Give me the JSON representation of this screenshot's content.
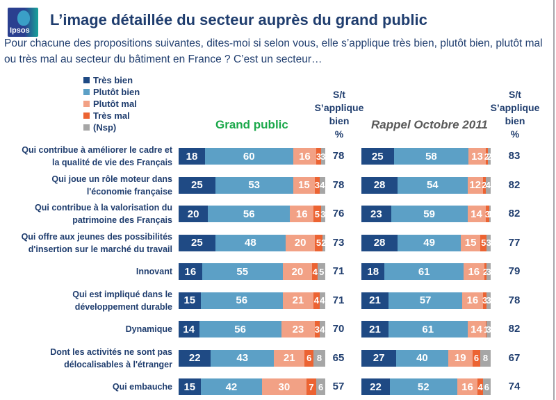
{
  "header": {
    "logo_text": "Ipsos",
    "title": "L’image détaillée du secteur auprès du grand public",
    "subtitle": "Pour chacune des propositions suivantes, dites-moi si selon vous, elle s’applique très bien, plutôt bien, plutôt mal ou très mal au secteur du bâtiment en France ? C’est un secteur…"
  },
  "colors": {
    "tres_bien": "#1f4a84",
    "plutot_bien": "#5ca0c6",
    "plutot_mal": "#f2a185",
    "tres_mal": "#ec6332",
    "nsp": "#a6a6a6"
  },
  "chart_data": {
    "type": "bar",
    "orientation": "horizontal",
    "stacked": true,
    "title": "L’image détaillée du secteur auprès du grand public",
    "legend": [
      "Très bien",
      "Plutôt bien",
      "Plutôt mal",
      "Très mal",
      "(Nsp)"
    ],
    "legend_position": "top-left",
    "categories": [
      "Qui contribue à améliorer le cadre et la qualité de vie des Français",
      "Qui joue un rôle moteur dans l'économie française",
      "Qui contribue à la valorisation du patrimoine des Français",
      "Qui offre aux jeunes des possibilités d'insertion sur le marché du travail",
      "Innovant",
      "Qui est impliqué dans le développement durable",
      "Dynamique",
      "Dont les activités ne sont pas délocalisables à l'étranger",
      "Qui embauche"
    ],
    "category_lines": [
      [
        "Qui contribue à améliorer le cadre et",
        "la qualité de vie des Français"
      ],
      [
        "Qui joue un rôle moteur dans",
        "l'économie française"
      ],
      [
        "Qui contribue à la valorisation du",
        "patrimoine des Français"
      ],
      [
        "Qui offre aux jeunes des possibilités",
        "d'insertion sur le marché du travail"
      ],
      [
        "Innovant"
      ],
      [
        "Qui est impliqué dans le",
        "développement durable"
      ],
      [
        "Dynamique"
      ],
      [
        "Dont les activités ne sont pas",
        "délocalisables à l'étranger"
      ],
      [
        "Qui embauche"
      ]
    ],
    "groups": [
      {
        "name": "Grand public",
        "total_header": [
          "S/t",
          "S’applique",
          "bien",
          "%"
        ],
        "series": [
          {
            "name": "Très bien",
            "values": [
              18,
              25,
              20,
              25,
              16,
              15,
              14,
              22,
              15
            ]
          },
          {
            "name": "Plutôt bien",
            "values": [
              60,
              53,
              56,
              48,
              55,
              56,
              56,
              43,
              42
            ]
          },
          {
            "name": "Plutôt mal",
            "values": [
              16,
              15,
              16,
              20,
              20,
              21,
              23,
              21,
              30
            ]
          },
          {
            "name": "Très mal",
            "values": [
              3,
              3,
              5,
              5,
              4,
              4,
              3,
              6,
              7
            ]
          },
          {
            "name": "(Nsp)",
            "values": [
              3,
              4,
              3,
              2,
              5,
              4,
              4,
              8,
              6
            ]
          }
        ],
        "totals": [
          78,
          78,
          76,
          73,
          71,
          71,
          70,
          65,
          57
        ]
      },
      {
        "name": "Rappel Octobre 2011",
        "total_header": [
          "S/t",
          "S’applique",
          "bien",
          "%"
        ],
        "series": [
          {
            "name": "Très bien",
            "values": [
              25,
              28,
              23,
              28,
              18,
              21,
              21,
              27,
              22
            ]
          },
          {
            "name": "Plutôt bien",
            "values": [
              58,
              54,
              59,
              49,
              61,
              57,
              61,
              40,
              52
            ]
          },
          {
            "name": "Plutôt mal",
            "values": [
              13,
              12,
              14,
              15,
              16,
              16,
              14,
              19,
              16
            ]
          },
          {
            "name": "Très mal",
            "values": [
              2,
              2,
              3,
              5,
              2,
              3,
              1,
              6,
              4
            ]
          },
          {
            "name": "(Nsp)",
            "values": [
              2,
              4,
              1,
              3,
              3,
              3,
              3,
              8,
              6
            ]
          }
        ],
        "totals": [
          83,
          82,
          82,
          77,
          79,
          78,
          82,
          67,
          74
        ]
      }
    ],
    "xlim": [
      0,
      100
    ]
  }
}
